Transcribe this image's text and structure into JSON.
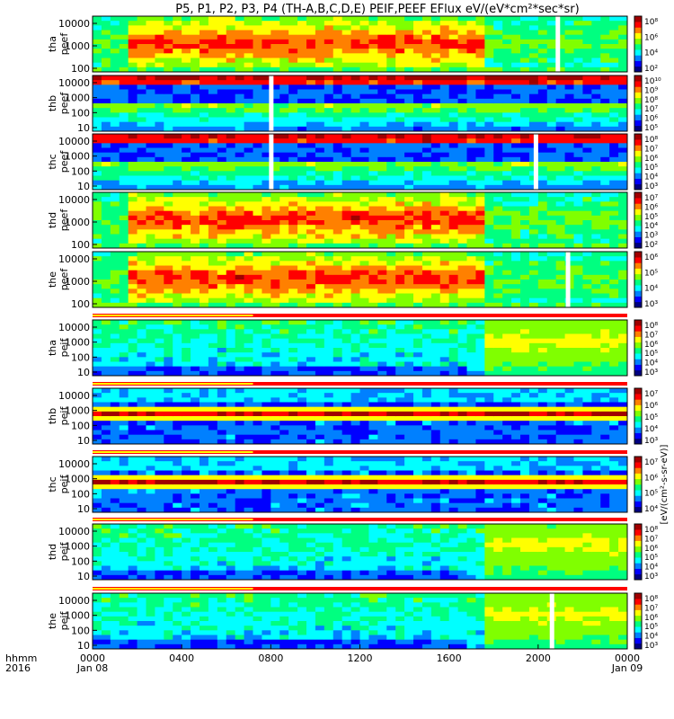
{
  "chart_data": {
    "type": "heatmap",
    "title": "P5, P1, P2, P3, P4 (TH-A,B,C,D,E) PEIF,PEEF EFlux eV/(eV*cm²*sec*sr)",
    "x_axis": {
      "label_line1": "hhmm",
      "label_line2": "2016",
      "range": [
        "0000",
        "0000"
      ],
      "tick_labels": [
        "0000",
        "0400",
        "0800",
        "1200",
        "1600",
        "2000",
        "0000"
      ],
      "date_labels": [
        {
          "at": "0000",
          "text": "Jan 08"
        },
        {
          "at": "0000",
          "text": "Jan 09"
        }
      ]
    },
    "colorbar_label": "[eV/(cm²-s-sr-eV)]",
    "panels": [
      {
        "probe": "tha",
        "product": "peef",
        "ylabel": [
          "tha",
          "peef"
        ],
        "yticks": [
          "10000",
          "1000",
          "100"
        ],
        "cbar_ticks": [
          "10⁸",
          "10⁶",
          "10⁴",
          "10²"
        ],
        "dominant": "high-flux",
        "gaps": [
          0.866
        ]
      },
      {
        "probe": "thb",
        "product": "peef",
        "ylabel": [
          "thb",
          "peef"
        ],
        "yticks": [
          "10000",
          "1000",
          "100",
          "10"
        ],
        "cbar_ticks": [
          "10¹⁰",
          "10⁹",
          "10⁸",
          "10⁷",
          "10⁶",
          "10⁵"
        ],
        "dominant": "banded",
        "gaps": [
          0.33
        ]
      },
      {
        "probe": "thc",
        "product": "peef",
        "ylabel": [
          "thc",
          "peef"
        ],
        "yticks": [
          "10000",
          "1000",
          "100",
          "10"
        ],
        "cbar_ticks": [
          "10⁸",
          "10⁷",
          "10⁶",
          "10⁵",
          "10⁴",
          "10³"
        ],
        "dominant": "banded",
        "gaps": [
          0.33,
          0.825
        ]
      },
      {
        "probe": "thd",
        "product": "peef",
        "ylabel": [
          "thd",
          "peef"
        ],
        "yticks": [
          "10000",
          "1000",
          "100"
        ],
        "cbar_ticks": [
          "10⁷",
          "10⁶",
          "10⁵",
          "10⁴",
          "10³",
          "10²"
        ],
        "dominant": "high-flux",
        "gaps": []
      },
      {
        "probe": "the",
        "product": "peef",
        "ylabel": [
          "the",
          "peef"
        ],
        "yticks": [
          "10000",
          "1000",
          "100"
        ],
        "cbar_ticks": [
          "10⁶",
          "10⁵",
          "10⁴",
          "10³"
        ],
        "dominant": "high-flux",
        "gaps": [
          0.885
        ]
      },
      {
        "probe": "tha",
        "product": "peif",
        "ylabel": [
          "tha",
          "peif"
        ],
        "yticks": [
          "10000",
          "1000",
          "100",
          "10"
        ],
        "cbar_ticks": [
          "10⁸",
          "10⁷",
          "10⁶",
          "10⁵",
          "10⁴",
          "10³"
        ],
        "dominant": "low-flux",
        "gaps": []
      },
      {
        "probe": "thb",
        "product": "peif",
        "ylabel": [
          "thb",
          "peif"
        ],
        "yticks": [
          "10000",
          "1000",
          "100",
          "10"
        ],
        "cbar_ticks": [
          "10⁷",
          "10⁶",
          "10⁵",
          "10⁴",
          "10³"
        ],
        "dominant": "low-band",
        "gaps": []
      },
      {
        "probe": "thc",
        "product": "peif",
        "ylabel": [
          "thc",
          "peif"
        ],
        "yticks": [
          "10000",
          "1000",
          "100",
          "10"
        ],
        "cbar_ticks": [
          "10⁷",
          "10⁶",
          "10⁵",
          "10⁴"
        ],
        "dominant": "low-band",
        "gaps": []
      },
      {
        "probe": "thd",
        "product": "peif",
        "ylabel": [
          "thd",
          "peif"
        ],
        "yticks": [
          "10000",
          "1000",
          "100",
          "10"
        ],
        "cbar_ticks": [
          "10⁸",
          "10⁷",
          "10⁶",
          "10⁵",
          "10⁴",
          "10³"
        ],
        "dominant": "low-flux",
        "gaps": []
      },
      {
        "probe": "the",
        "product": "peif",
        "ylabel": [
          "the",
          "peif"
        ],
        "yticks": [
          "10000",
          "1000",
          "100",
          "10"
        ],
        "cbar_ticks": [
          "10⁸",
          "10⁷",
          "10⁶",
          "10⁵",
          "10⁴",
          "10³"
        ],
        "dominant": "low-flux",
        "gaps": [
          0.855
        ]
      }
    ],
    "colormap": [
      "#000080",
      "#0000ff",
      "#0080ff",
      "#00ffff",
      "#00ff80",
      "#80ff00",
      "#ffff00",
      "#ff8000",
      "#ff0000",
      "#a00000"
    ],
    "legend_placement": "right"
  }
}
